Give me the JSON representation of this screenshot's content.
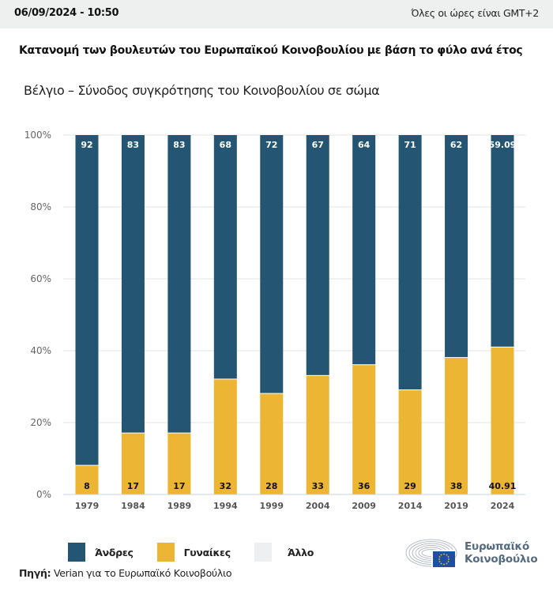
{
  "header": {
    "datetime": "06/09/2024 - 10:50",
    "timezone_note": "Όλες οι ώρες είναι GMT+2"
  },
  "title": "Κατανομή των βουλευτών του Ευρωπαϊκού Κοινοβουλίου με βάση το φύλο ανά έτος",
  "subtitle": "Βέλγιο – Σύνοδος συγκρότησης του Κοινοβουλίου σε σώμα",
  "colors": {
    "men": "#245674",
    "women": "#ecb534",
    "other": "#eeeff1",
    "grid": "#e3e3e3",
    "axis": "#c7d3de"
  },
  "chart_data": {
    "type": "bar",
    "stacked": true,
    "title": "Κατανομή των βουλευτών του Ευρωπαϊκού Κοινοβουλίου με βάση το φύλο ανά έτος",
    "subtitle": "Βέλγιο – Σύνοδος συγκρότησης του Κοινοβουλίου σε σώμα",
    "xlabel": "",
    "ylabel": "",
    "categories": [
      "1979",
      "1984",
      "1989",
      "1994",
      "1999",
      "2004",
      "2009",
      "2014",
      "2019",
      "2024"
    ],
    "series": [
      {
        "name": "Γυναίκες",
        "key": "women",
        "values": [
          8,
          17,
          17,
          32,
          28,
          33,
          36,
          29,
          38,
          40.91
        ]
      },
      {
        "name": "Άνδρες",
        "key": "men",
        "values": [
          92,
          83,
          83,
          68,
          72,
          67,
          64,
          71,
          62,
          59.09
        ]
      },
      {
        "name": "Άλλο",
        "key": "other",
        "values": [
          0,
          0,
          0,
          0,
          0,
          0,
          0,
          0,
          0,
          0
        ]
      }
    ],
    "ylim": [
      0,
      100
    ],
    "yticks": [
      "0%",
      "20%",
      "40%",
      "60%",
      "80%",
      "100%"
    ],
    "ytick_values": [
      0,
      20,
      40,
      60,
      80,
      100
    ],
    "grid": true,
    "legend_position": "bottom-left"
  },
  "legend": [
    {
      "label": "Άνδρες",
      "key": "men"
    },
    {
      "label": "Γυναίκες",
      "key": "women"
    },
    {
      "label": "Άλλο",
      "key": "other"
    }
  ],
  "source": {
    "prefix": "Πηγή:",
    "text": " Verian για το Ευρωπαϊκό Κοινοβούλιο"
  },
  "logo": {
    "line1": "Ευρωπαϊκό",
    "line2": "Κοινοβούλιο"
  }
}
